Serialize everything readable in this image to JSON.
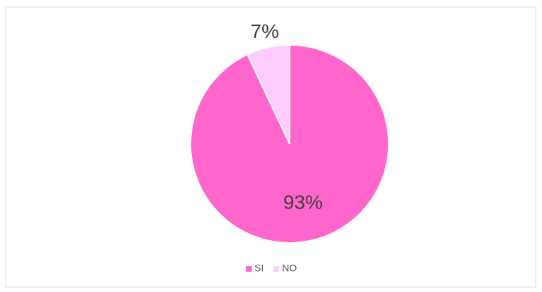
{
  "chart_data": {
    "type": "pie",
    "categories": [
      "SI",
      "NO"
    ],
    "values": [
      93,
      7
    ],
    "value_labels": [
      "93%",
      "7%"
    ],
    "colors": [
      "#ff66cc",
      "#ffccff"
    ],
    "legend": "bottom"
  }
}
